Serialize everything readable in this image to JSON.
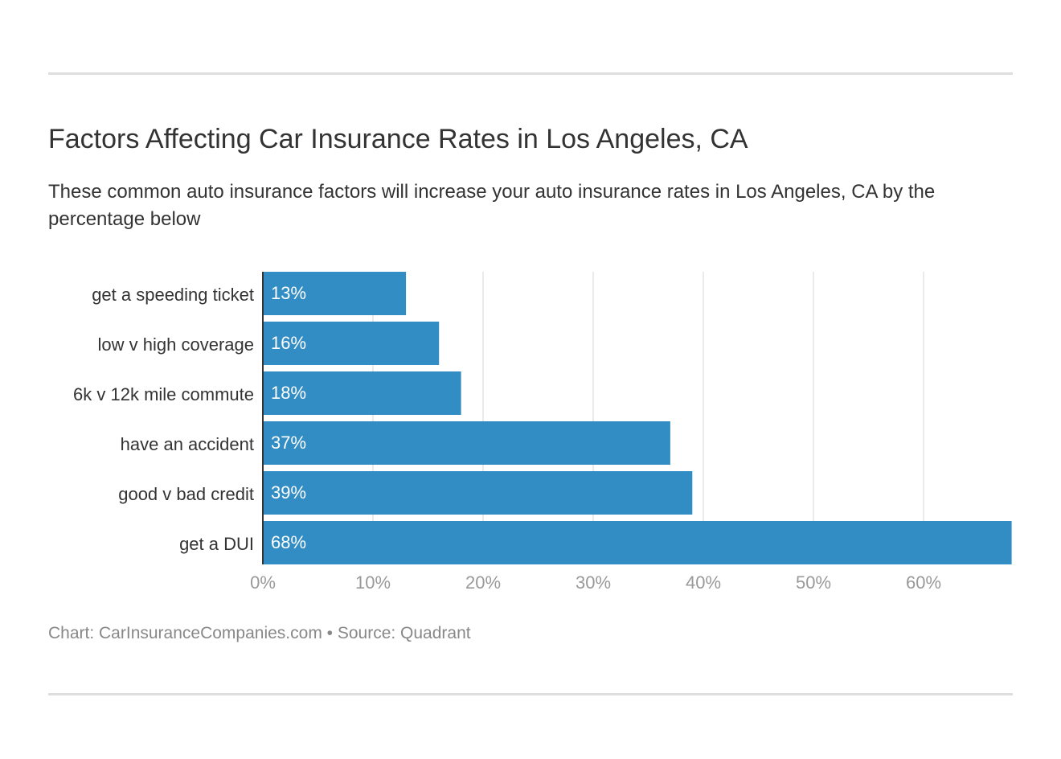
{
  "chart_data": {
    "type": "bar",
    "orientation": "horizontal",
    "title": "Factors Affecting Car Insurance Rates in Los Angeles, CA",
    "subtitle": "These common auto insurance factors will increase your auto insurance rates in Los Angeles, CA by the percentage below",
    "categories": [
      "get a speeding ticket",
      "low v high coverage",
      "6k v 12k mile commute",
      "have an accident",
      "good v bad credit",
      "get a DUI"
    ],
    "values": [
      13,
      16,
      18,
      37,
      39,
      68
    ],
    "data_labels": [
      "13%",
      "16%",
      "18%",
      "37%",
      "39%",
      "68%"
    ],
    "xlim": [
      0,
      68
    ],
    "x_ticks": [
      0,
      10,
      20,
      30,
      40,
      50,
      60
    ],
    "x_tick_labels": [
      "0%",
      "10%",
      "20%",
      "30%",
      "40%",
      "50%",
      "60%"
    ],
    "grid": true,
    "bar_color": "#318dc4",
    "footer": "Chart: CarInsuranceCompanies.com • Source: Quadrant"
  }
}
